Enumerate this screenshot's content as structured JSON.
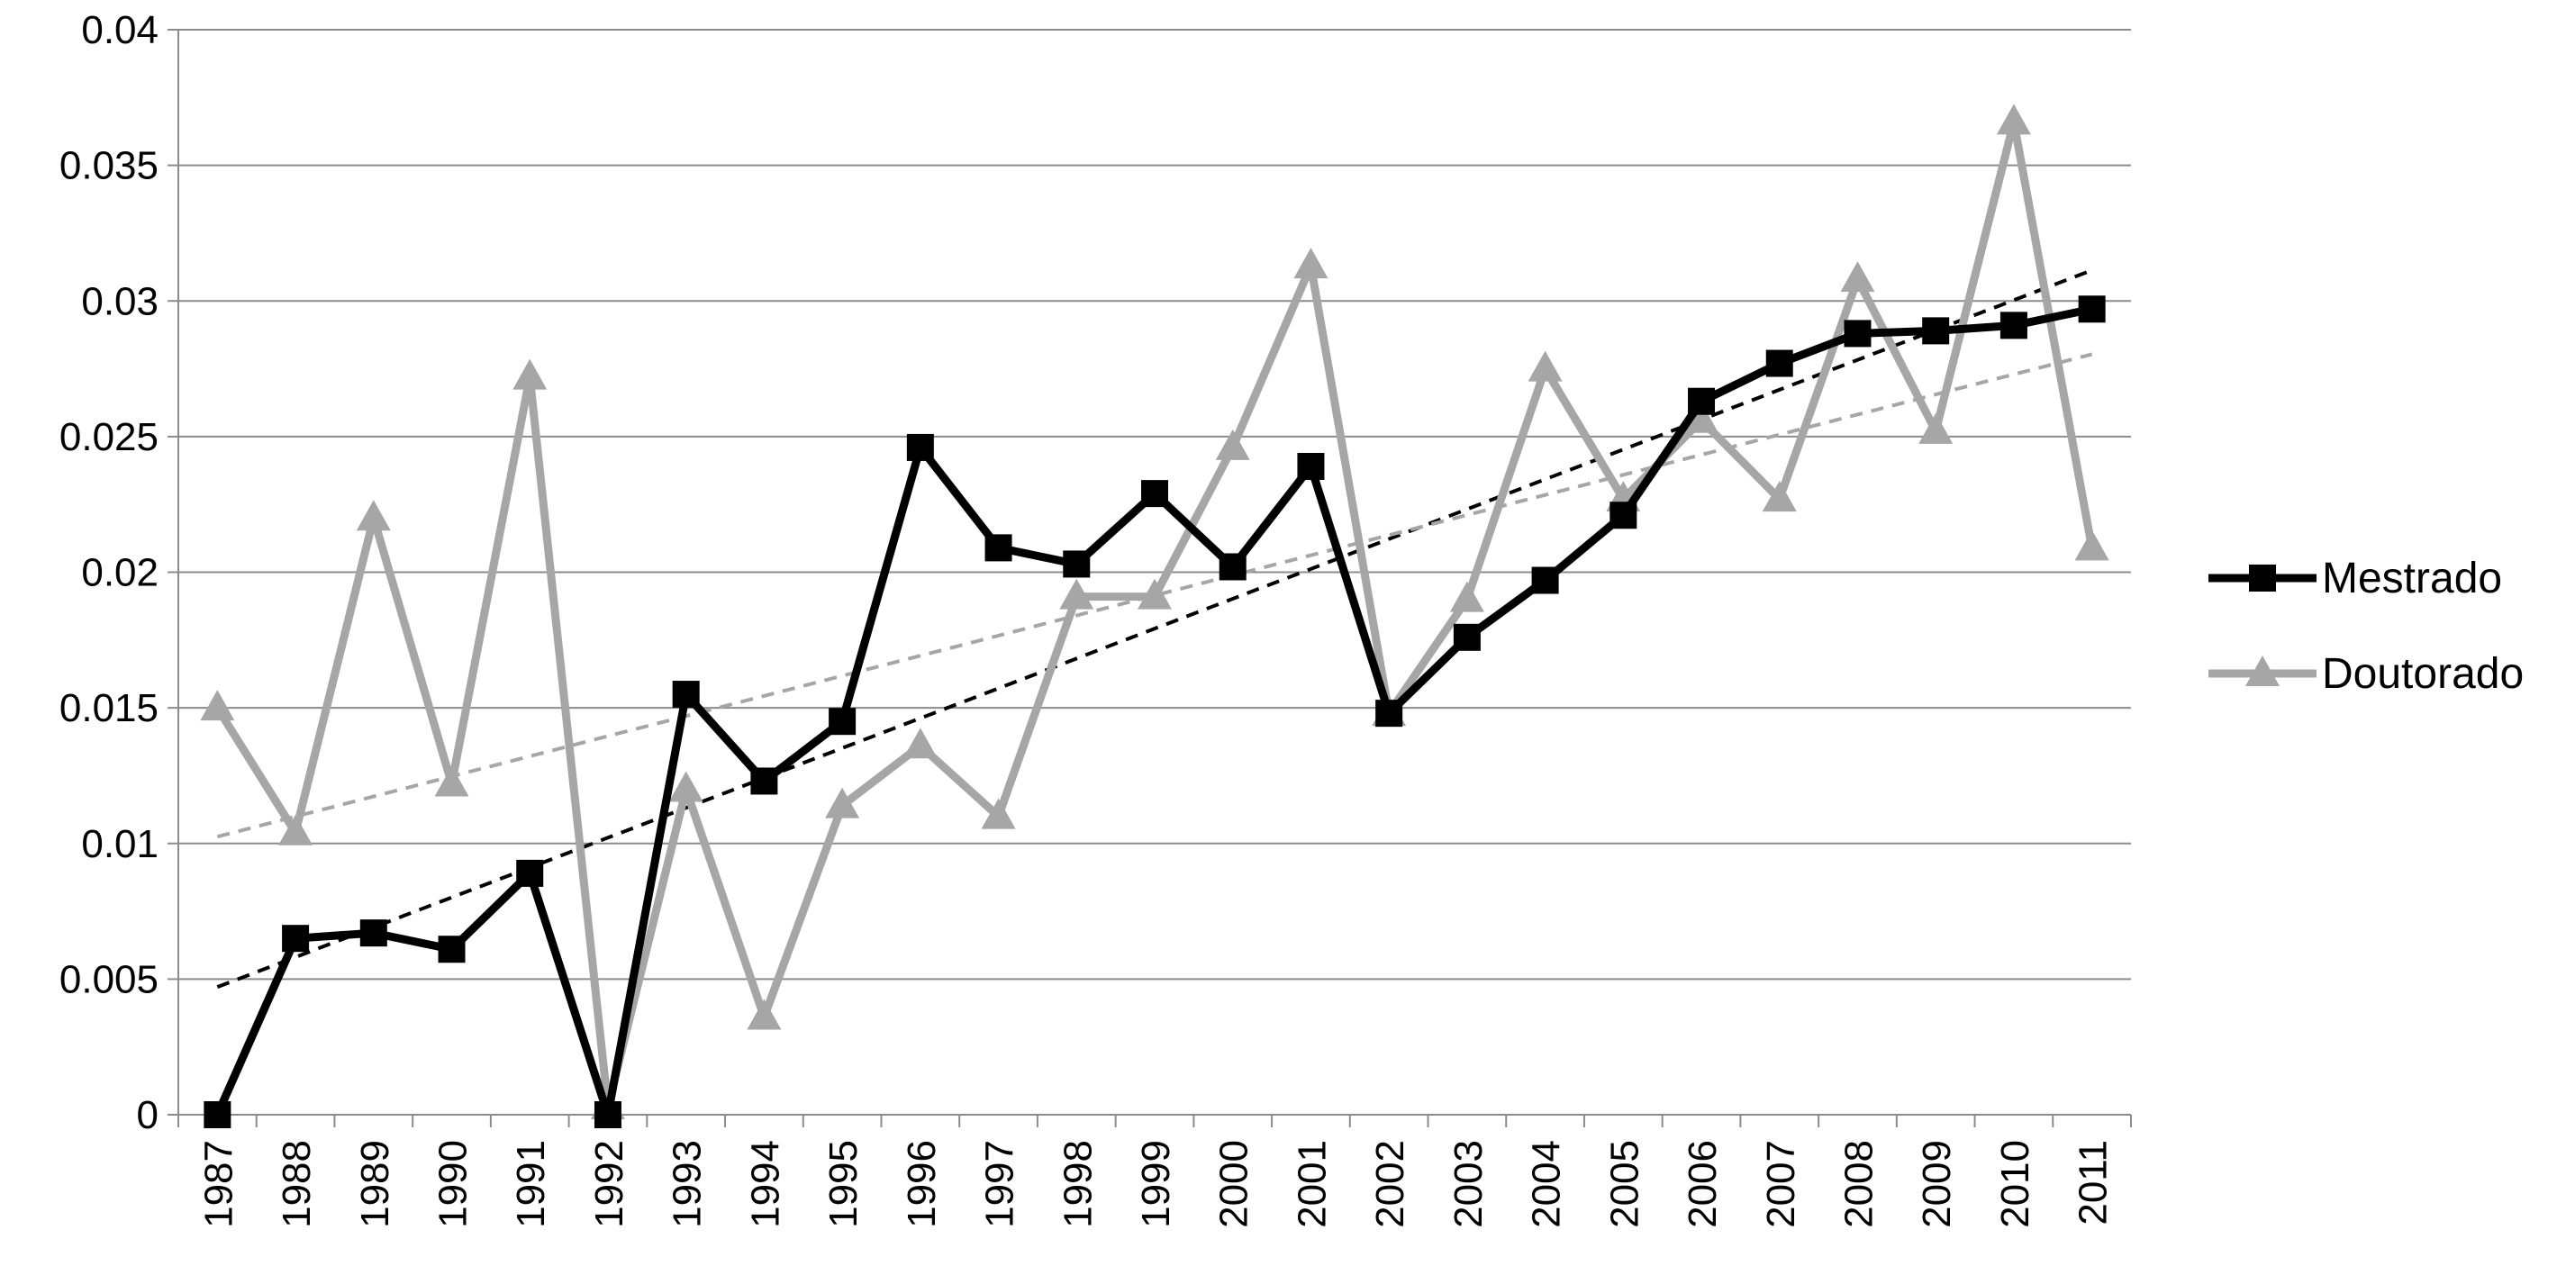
{
  "chart_data": {
    "type": "line",
    "title": "",
    "xlabel": "",
    "ylabel": "",
    "categories": [
      "1987",
      "1988",
      "1989",
      "1990",
      "1991",
      "1992",
      "1993",
      "1994",
      "1995",
      "1996",
      "1997",
      "1998",
      "1999",
      "2000",
      "2001",
      "2002",
      "2003",
      "2004",
      "2005",
      "2006",
      "2007",
      "2008",
      "2009",
      "2010",
      "2011"
    ],
    "ylim": [
      0,
      0.04
    ],
    "yticks": [
      "0",
      "0.005",
      "0.01",
      "0.015",
      "0.02",
      "0.025",
      "0.03",
      "0.035",
      "0.04"
    ],
    "grid": "horizontal",
    "legend_position": "right",
    "series": [
      {
        "name": "Mestrado",
        "color": "#000000",
        "marker": "square",
        "values": [
          0.0,
          0.0065,
          0.0067,
          0.0061,
          0.0089,
          0.0,
          0.0155,
          0.0123,
          0.0145,
          0.0246,
          0.0209,
          0.0203,
          0.0229,
          0.0202,
          0.0239,
          0.0148,
          0.0176,
          0.0197,
          0.0221,
          0.0263,
          0.0277,
          0.0288,
          0.0289,
          0.0291,
          0.0297
        ],
        "trendline": {
          "color": "#000000",
          "style": "dashed"
        }
      },
      {
        "name": "Doutorado",
        "color": "#a6a6a6",
        "marker": "triangle",
        "values": [
          0.015,
          0.0104,
          0.022,
          0.0122,
          0.0272,
          0.0003,
          0.012,
          0.0036,
          0.0114,
          0.0136,
          0.011,
          0.0191,
          0.0191,
          0.0246,
          0.0313,
          0.0148,
          0.019,
          0.0275,
          0.0227,
          0.0256,
          0.0227,
          0.0308,
          0.0252,
          0.0366,
          0.0209
        ],
        "trendline": {
          "color": "#a6a6a6",
          "style": "dashed"
        }
      }
    ]
  }
}
